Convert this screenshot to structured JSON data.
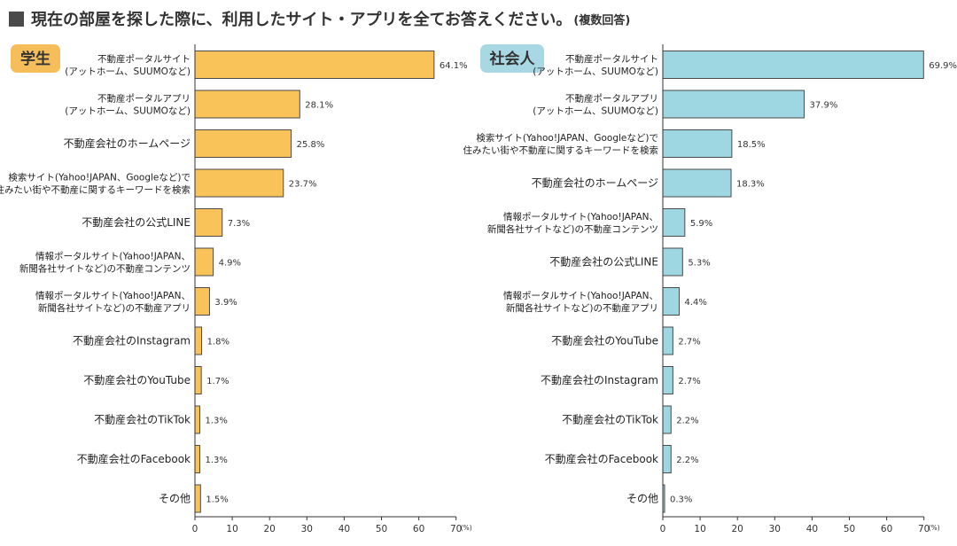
{
  "header": {
    "title": "現在の部屋を探した際に、利用したサイト・アプリを全てお答えください。",
    "note": "(複数回答)"
  },
  "colors": {
    "student_fill": "#F9C35A",
    "worker_fill": "#9ED6E2",
    "bar_stroke": "#4a4a4a",
    "badge_student": "#F6BE5A",
    "badge_worker": "#A7D8E4"
  },
  "chart_data": [
    {
      "type": "bar",
      "orientation": "horizontal",
      "badge": "学生",
      "axis_unit": "(%)",
      "xlim": [
        0,
        70
      ],
      "ticks": [
        "0",
        "10",
        "20",
        "30",
        "40",
        "50",
        "60",
        "70"
      ],
      "categories": [
        [
          "不動産ポータルサイト",
          "(アットホーム、SUUMOなど)"
        ],
        [
          "不動産ポータルアプリ",
          "(アットホーム、SUUMOなど)"
        ],
        [
          "不動産会社のホームページ"
        ],
        [
          "検索サイト(Yahoo!JAPAN、Googleなど)で",
          "住みたい街や不動産に関するキーワードを検索"
        ],
        [
          "不動産会社の公式LINE"
        ],
        [
          "情報ポータルサイト(Yahoo!JAPAN、",
          "新聞各社サイトなど)の不動産コンテンツ"
        ],
        [
          "情報ポータルサイト(Yahoo!JAPAN、",
          "新聞各社サイトなど)の不動産アプリ"
        ],
        [
          "不動産会社のInstagram"
        ],
        [
          "不動産会社のYouTube"
        ],
        [
          "不動産会社のTikTok"
        ],
        [
          "不動産会社のFacebook"
        ],
        [
          "その他"
        ]
      ],
      "values": [
        64.1,
        28.1,
        25.8,
        23.7,
        7.3,
        4.9,
        3.9,
        1.8,
        1.7,
        1.3,
        1.3,
        1.5
      ],
      "value_labels": [
        "64.1%",
        "28.1%",
        "25.8%",
        "23.7%",
        "7.3%",
        "4.9%",
        "3.9%",
        "1.8%",
        "1.7%",
        "1.3%",
        "1.3%",
        "1.5%"
      ]
    },
    {
      "type": "bar",
      "orientation": "horizontal",
      "badge": "社会人",
      "axis_unit": "(%)",
      "xlim": [
        0,
        70
      ],
      "ticks": [
        "0",
        "10",
        "20",
        "30",
        "40",
        "50",
        "60",
        "70"
      ],
      "categories": [
        [
          "不動産ポータルサイト",
          "(アットホーム、SUUMOなど)"
        ],
        [
          "不動産ポータルアプリ",
          "(アットホーム、SUUMOなど)"
        ],
        [
          "検索サイト(Yahoo!JAPAN、Googleなど)で",
          "住みたい街や不動産に関するキーワードを検索"
        ],
        [
          "不動産会社のホームページ"
        ],
        [
          "情報ポータルサイト(Yahoo!JAPAN、",
          "新聞各社サイトなど)の不動産コンテンツ"
        ],
        [
          "不動産会社の公式LINE"
        ],
        [
          "情報ポータルサイト(Yahoo!JAPAN、",
          "新聞各社サイトなど)の不動産アプリ"
        ],
        [
          "不動産会社のYouTube"
        ],
        [
          "不動産会社のInstagram"
        ],
        [
          "不動産会社のTikTok"
        ],
        [
          "不動産会社のFacebook"
        ],
        [
          "その他"
        ]
      ],
      "values": [
        69.9,
        37.9,
        18.5,
        18.3,
        5.9,
        5.3,
        4.4,
        2.7,
        2.7,
        2.2,
        2.2,
        0.3
      ],
      "value_labels": [
        "69.9%",
        "37.9%",
        "18.5%",
        "18.3%",
        "5.9%",
        "5.3%",
        "4.4%",
        "2.7%",
        "2.7%",
        "2.2%",
        "2.2%",
        "0.3%"
      ]
    }
  ]
}
